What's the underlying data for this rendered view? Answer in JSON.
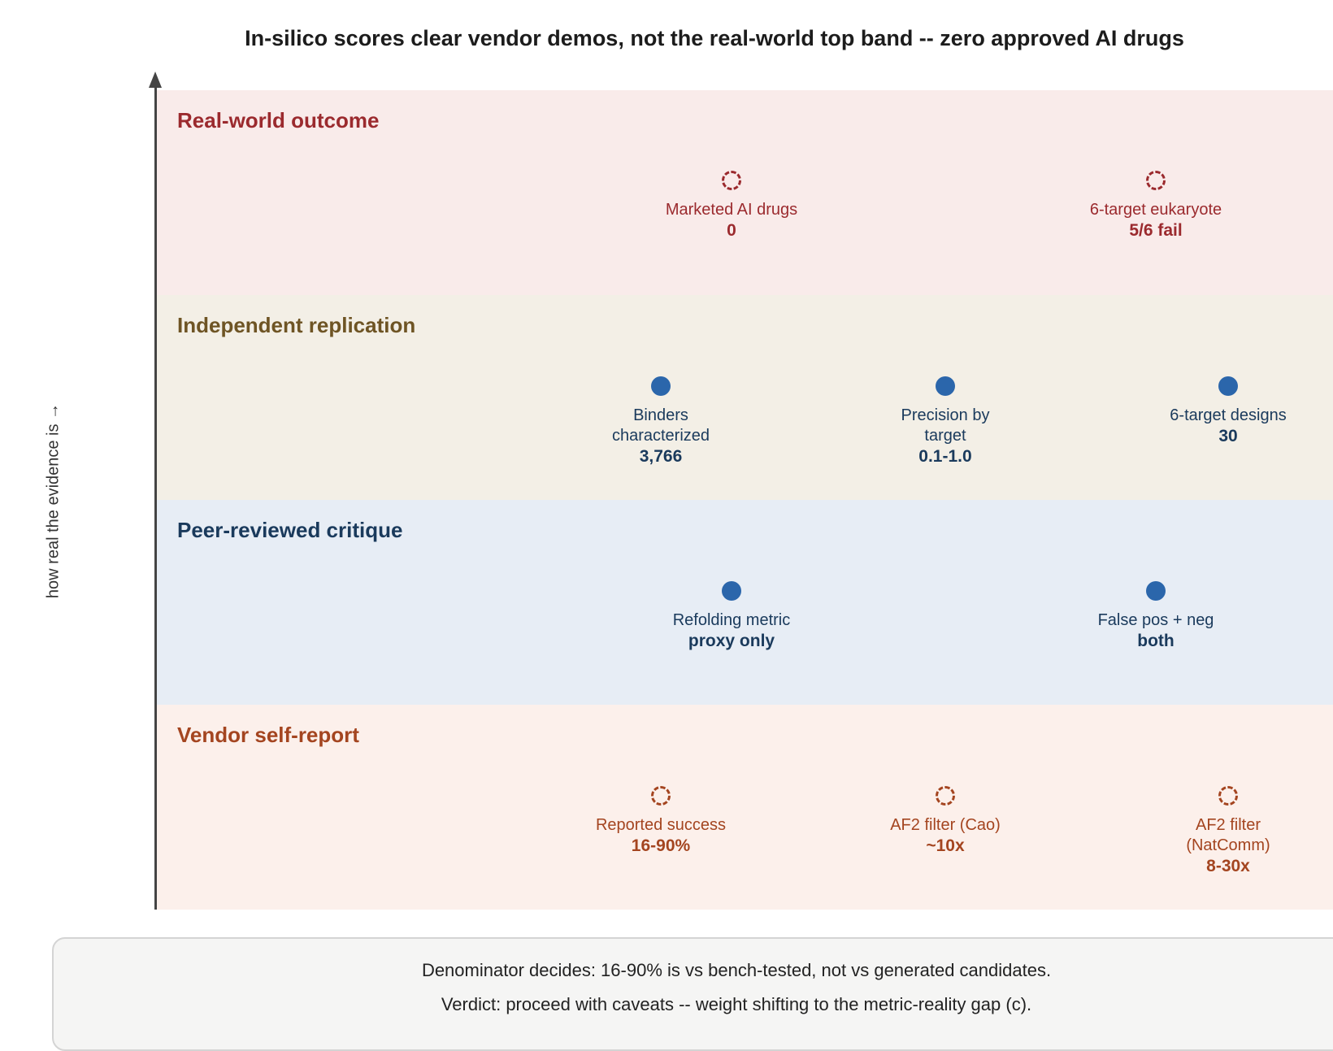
{
  "title": "In-silico scores clear vendor demos, not the real-world top band -- zero approved AI drugs",
  "y_axis_label": "how real the evidence is →",
  "colors": {
    "real_world": "#9b2a2e",
    "replication": "#6e5424",
    "peer_review": "#1a3a5c",
    "vendor": "#a44520",
    "marker_blue": "#2b66ab"
  },
  "bands": [
    {
      "title": "Real-world outcome",
      "points": [
        {
          "label": "Marketed AI drugs",
          "value": "0",
          "marker": "dashed"
        },
        {
          "label": "6-target eukaryote",
          "value": "5/6 fail",
          "marker": "dashed"
        }
      ]
    },
    {
      "title": "Independent replication",
      "points": [
        {
          "label": "Binders characterized",
          "value": "3,766",
          "marker": "solid"
        },
        {
          "label": "Precision by target",
          "value": "0.1-1.0",
          "marker": "solid"
        },
        {
          "label": "6-target designs",
          "value": "30",
          "marker": "solid"
        }
      ]
    },
    {
      "title": "Peer-reviewed critique",
      "points": [
        {
          "label": "Refolding metric",
          "value": "proxy only",
          "marker": "solid"
        },
        {
          "label": "False pos + neg",
          "value": "both",
          "marker": "solid"
        }
      ]
    },
    {
      "title": "Vendor self-report",
      "points": [
        {
          "label": "Reported success",
          "value": "16-90%",
          "marker": "dashed"
        },
        {
          "label": "AF2 filter (Cao)",
          "value": "~10x",
          "marker": "dashed"
        },
        {
          "label": "AF2 filter (NatComm)",
          "value": "8-30x",
          "marker": "dashed"
        }
      ]
    }
  ],
  "footer": {
    "line1": "Denominator decides: 16-90% is vs bench-tested, not vs generated candidates.",
    "line2": "Verdict: proceed with caveats -- weight shifting to the metric-reality gap (c)."
  }
}
